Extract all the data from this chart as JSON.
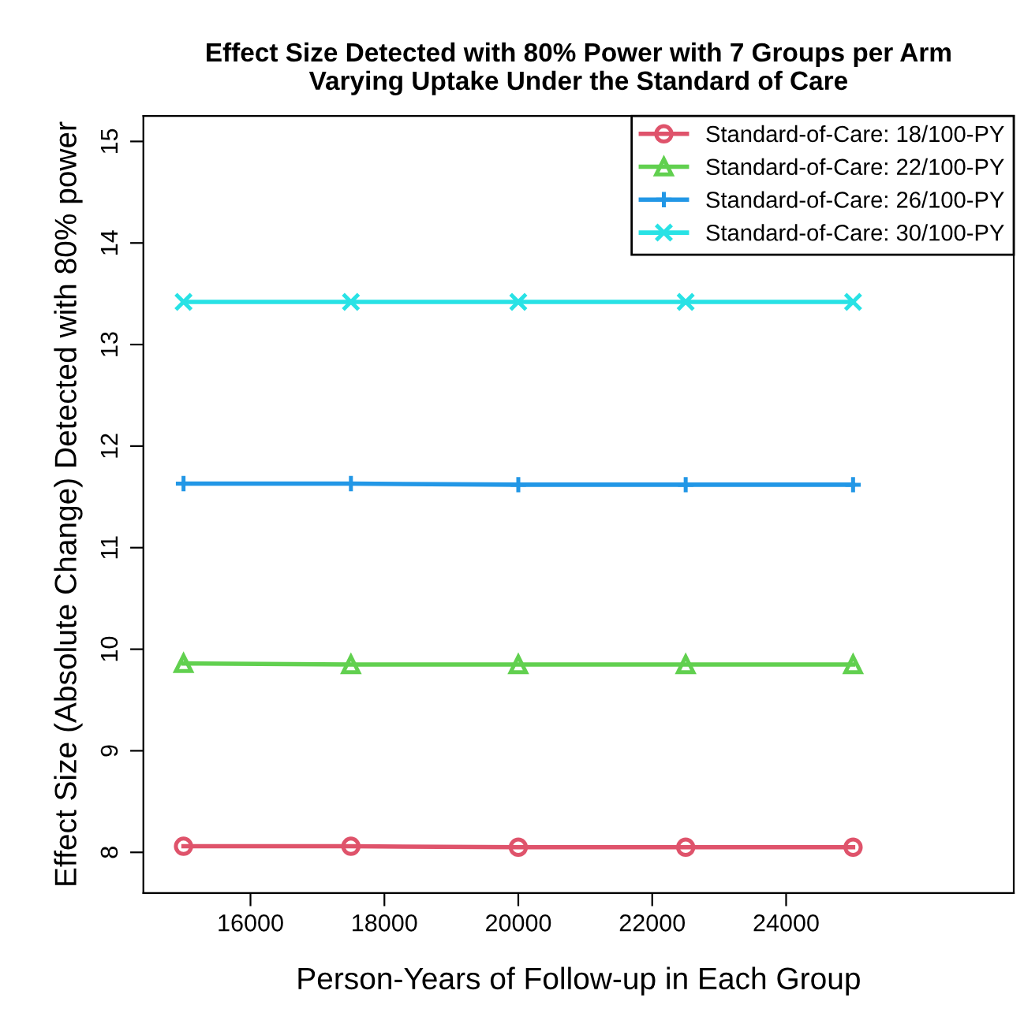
{
  "chart_data": {
    "type": "line",
    "title": "Effect Size Detected with 80% Power with 7 Groups per Arm\nVarying Uptake Under the Standard of Care",
    "xlabel": "Person-Years of Follow-up in Each Group",
    "ylabel": "Effect Size (Absolute Change) Detected with 80% power",
    "x": [
      15000,
      17500,
      20000,
      22500,
      25000
    ],
    "series": [
      {
        "name": "Standard-of-Care: 18/100-PY",
        "color": "#df536b",
        "marker": "circle",
        "values": [
          8.06,
          8.06,
          8.05,
          8.05,
          8.05
        ]
      },
      {
        "name": "Standard-of-Care: 22/100-PY",
        "color": "#61d04f",
        "marker": "triangle",
        "values": [
          9.86,
          9.85,
          9.85,
          9.85,
          9.85
        ]
      },
      {
        "name": "Standard-of-Care: 26/100-PY",
        "color": "#2297e6",
        "marker": "plus",
        "values": [
          11.63,
          11.63,
          11.62,
          11.62,
          11.62
        ]
      },
      {
        "name": "Standard-of-Care: 30/100-PY",
        "color": "#28e2e5",
        "marker": "cross",
        "values": [
          13.42,
          13.42,
          13.42,
          13.42,
          13.42
        ]
      }
    ],
    "xlim": [
      14400,
      27400
    ],
    "ylim": [
      7.6,
      15.25
    ],
    "xticks": [
      16000,
      18000,
      20000,
      22000,
      24000
    ],
    "yticks": [
      8,
      9,
      10,
      11,
      12,
      13,
      14,
      15
    ],
    "grid": false,
    "legend": "top right",
    "line_style": "solid"
  }
}
